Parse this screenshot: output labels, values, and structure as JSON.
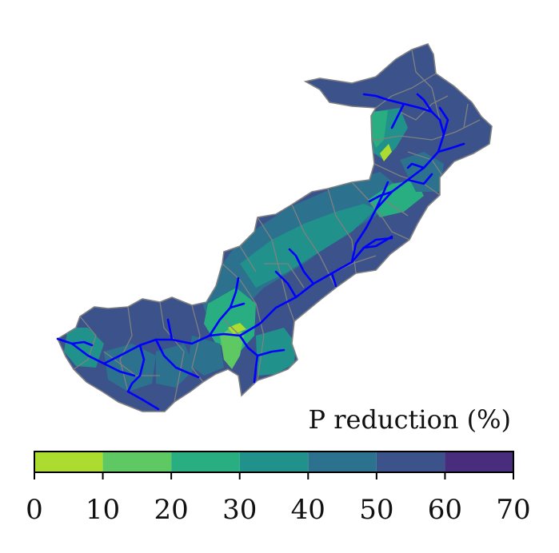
{
  "colorbar": {
    "title": "P reduction (%)",
    "ticks": [
      "0",
      "10",
      "20",
      "30",
      "40",
      "50",
      "60",
      "70"
    ],
    "bins": [
      {
        "range": [
          0,
          10
        ],
        "color": "#addc30"
      },
      {
        "range": [
          10,
          20
        ],
        "color": "#5ec962"
      },
      {
        "range": [
          20,
          30
        ],
        "color": "#28ae80"
      },
      {
        "range": [
          30,
          40
        ],
        "color": "#21918c"
      },
      {
        "range": [
          40,
          50
        ],
        "color": "#2c728e"
      },
      {
        "range": [
          50,
          60
        ],
        "color": "#3b528b"
      },
      {
        "range": [
          60,
          70
        ],
        "color": "#472d7b"
      }
    ]
  },
  "colors": {
    "river": "#0000ff",
    "boundary": "#808080"
  }
}
